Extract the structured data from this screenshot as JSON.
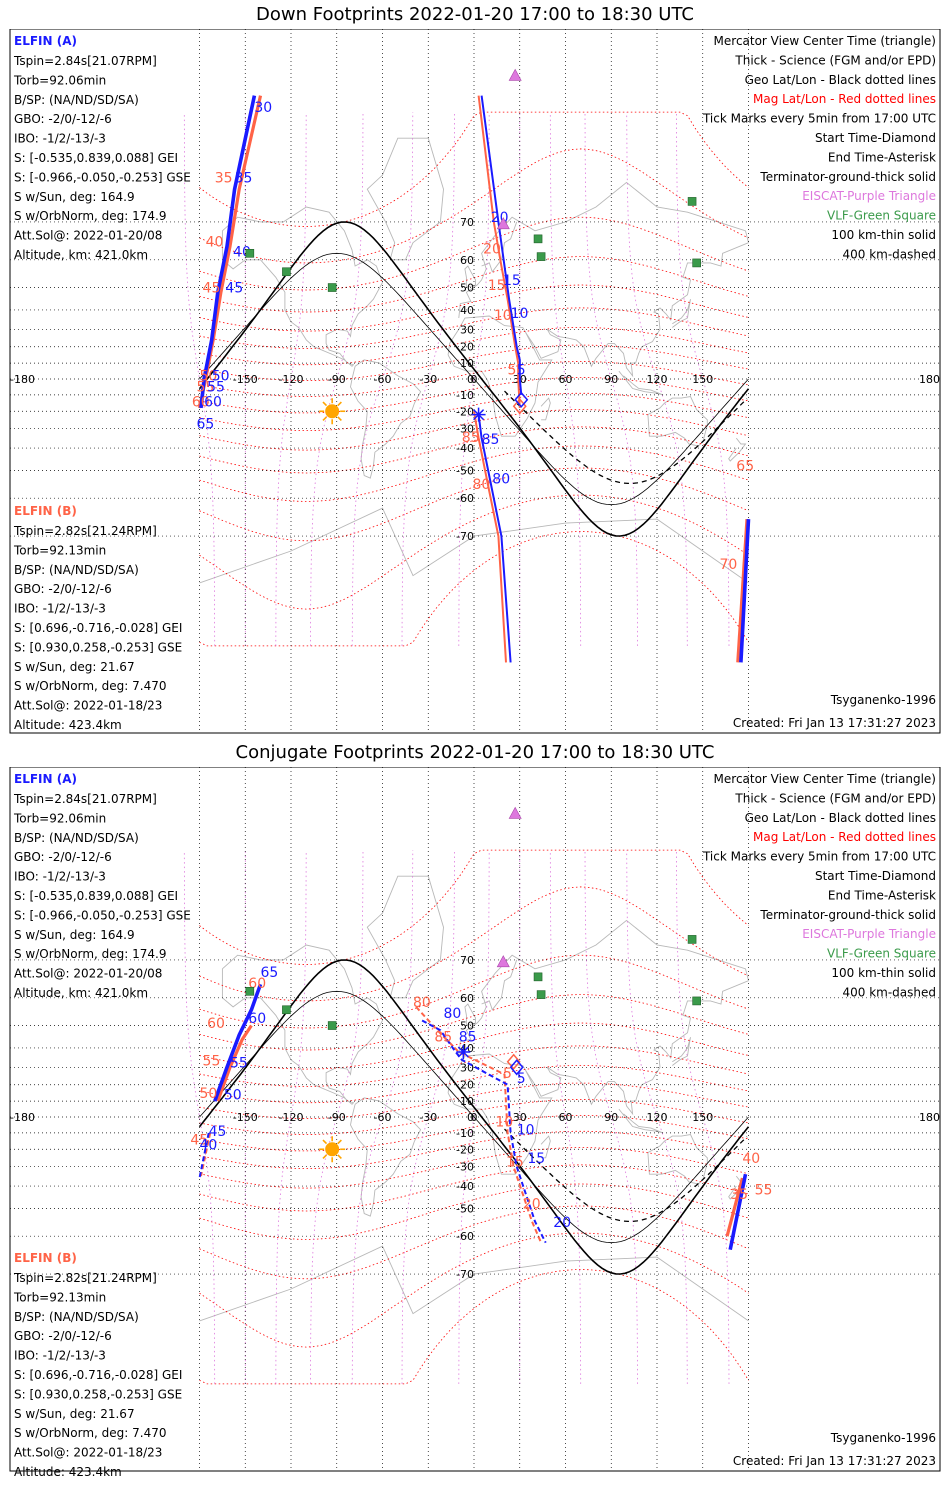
{
  "colors": {
    "sat_a": "#1a1aff",
    "sat_b": "#ff6347",
    "geo_grid": "#000000",
    "mag_grid": "#ff0000",
    "eiscat": "#dd77dd",
    "vlf": "#3a9a4a",
    "coast": "#b8b8b8",
    "sun": "#ffa500"
  },
  "legend": [
    {
      "text": "Mercator View Center Time (triangle)",
      "color": "#000000"
    },
    {
      "text": "Thick - Science (FGM and/or EPD)",
      "color": "#000000"
    },
    {
      "text": "Geo Lat/Lon - Black dotted lines",
      "color": "#000000"
    },
    {
      "text": "Mag Lat/Lon - Red dotted lines",
      "color": "#ff0000"
    },
    {
      "text": "Tick Marks every 5min from 17:00 UTC",
      "color": "#000000"
    },
    {
      "text": "Start Time-Diamond",
      "color": "#000000"
    },
    {
      "text": "End Time-Asterisk",
      "color": "#000000"
    },
    {
      "text": "Terminator-ground-thick solid",
      "color": "#000000"
    },
    {
      "text": "EISCAT-Purple Triangle",
      "color": "#dd77dd"
    },
    {
      "text": "VLF-Green Square",
      "color": "#3a9a4a"
    },
    {
      "text": "100 km-thin solid",
      "color": "#000000"
    },
    {
      "text": "400 km-dashed",
      "color": "#000000"
    }
  ],
  "info_a": [
    "Tspin=2.84s[21.07RPM]",
    "Torb=92.06min",
    "B/SP: (NA/ND/SD/SA)",
    "GBO: -2/0/-12/-6",
    "IBO: -1/2/-13/-3",
    "S: [-0.535,0.839,0.088] GEI",
    "S: [-0.966,-0.050,-0.253] GSE",
    "S w/Sun, deg: 164.9",
    "S w/OrbNorm, deg: 174.9",
    "Att.Sol@: 2022-01-20/08",
    "Altitude, km: 421.0km"
  ],
  "info_b": [
    "Tspin=2.82s[21.24RPM]",
    "Torb=92.13min",
    "B/SP: (NA/ND/SD/SA)",
    "GBO: -2/0/-12/-6",
    "IBO: -1/2/-13/-3",
    "S: [0.696,-0.716,-0.028] GEI",
    "S: [0.930,0.258,-0.253] GSE",
    "S w/Sun, deg: 21.67",
    "S w/OrbNorm, deg: 7.470",
    "Att.Sol@: 2022-01-18/23",
    "Altitude: 423.4km"
  ],
  "lon_ticks": [
    -180,
    -150,
    -120,
    -90,
    -60,
    -30,
    0,
    30,
    60,
    90,
    120,
    150,
    180
  ],
  "lon_tick_labels": [
    "-180",
    "-150",
    "-120",
    "-90",
    "-60",
    "-30",
    "0",
    "30",
    "60",
    "90",
    "120",
    "150",
    "180"
  ],
  "lat_ticks": [
    70,
    60,
    50,
    40,
    30,
    20,
    10,
    0,
    -10,
    -20,
    -30,
    -40,
    -50,
    -60,
    -70
  ],
  "lat_tick_labels": [
    "70",
    "60",
    "50",
    "40",
    "30",
    "20",
    "10",
    "0",
    "-10",
    "-20",
    "-30",
    "-40",
    "-50",
    "-60",
    "-70"
  ],
  "eiscat": [
    {
      "lon": 19.2,
      "lat": 69.6
    },
    {
      "lon": 27.0,
      "lat": 86.0
    }
  ],
  "vlf": [
    {
      "lon": 42,
      "lat": 66
    },
    {
      "lon": 44,
      "lat": 61
    },
    {
      "lon": 146,
      "lat": 59
    },
    {
      "lon": 143,
      "lat": 74
    },
    {
      "lon": -123,
      "lat": 56
    },
    {
      "lon": -147,
      "lat": 62
    },
    {
      "lon": -93,
      "lat": 50
    }
  ],
  "sun": {
    "lon": -93,
    "lat": -20
  },
  "panels": [
    {
      "title": "Down Footprints 2022-01-20 17:00 to 18:30 UTC",
      "sat_a_label": "ELFIN (A)",
      "sat_b_label": "ELFIN (B)",
      "model_label": "Tsyganenko-1996",
      "created_label": "Created: Fri Jan 13 17:31:27 2023",
      "terminator": {
        "phase": 95,
        "amp": 70
      },
      "term100": {
        "phase": 98,
        "amp": 70
      },
      "term400": {
        "phase": 102,
        "amp": 63
      },
      "track_a": [
        {
          "lon": -144,
          "lat": 85
        },
        {
          "lon": -157,
          "lat": 76
        },
        {
          "lon": -162,
          "lat": 64
        },
        {
          "lon": -168,
          "lat": 48
        },
        {
          "lon": -172,
          "lat": 24
        },
        {
          "lon": -177,
          "lat": 0
        },
        {
          "lon": -179,
          "lat": -18
        }
      ],
      "track_a2": [
        {
          "lon": 5,
          "lat": 85
        },
        {
          "lon": 16,
          "lat": 70
        },
        {
          "lon": 20,
          "lat": 58
        },
        {
          "lon": 23,
          "lat": 45
        },
        {
          "lon": 28,
          "lat": 20
        },
        {
          "lon": 30,
          "lat": 12
        },
        {
          "lon": 30,
          "lat": 0
        },
        {
          "lon": 31,
          "lat": -10
        }
      ],
      "track_a3": [
        {
          "lon": 3,
          "lat": -22
        },
        {
          "lon": 5,
          "lat": -35
        },
        {
          "lon": 11,
          "lat": -55
        },
        {
          "lon": 18,
          "lat": -70
        },
        {
          "lon": 24,
          "lat": -85
        }
      ],
      "track_a4": [
        {
          "lon": 175,
          "lat": -85
        },
        {
          "lon": 180,
          "lat": -66
        }
      ],
      "track_b": [
        {
          "lon": -140,
          "lat": 85
        },
        {
          "lon": -154,
          "lat": 76
        },
        {
          "lon": -160,
          "lat": 64
        },
        {
          "lon": -166,
          "lat": 48
        },
        {
          "lon": -171,
          "lat": 24
        },
        {
          "lon": -176,
          "lat": 0
        },
        {
          "lon": -180,
          "lat": -18
        }
      ],
      "track_b2": [
        {
          "lon": 3,
          "lat": 85
        },
        {
          "lon": 13,
          "lat": 70
        },
        {
          "lon": 18,
          "lat": 58
        },
        {
          "lon": 22,
          "lat": 45
        },
        {
          "lon": 27,
          "lat": 20
        },
        {
          "lon": 29,
          "lat": 10
        },
        {
          "lon": 29,
          "lat": 0
        },
        {
          "lon": 30,
          "lat": -18
        }
      ],
      "track_b3": [
        {
          "lon": 0,
          "lat": -20
        },
        {
          "lon": 3,
          "lat": -35
        },
        {
          "lon": 9,
          "lat": -55
        },
        {
          "lon": 16,
          "lat": -70
        },
        {
          "lon": 21,
          "lat": -85
        }
      ],
      "track_b4": [
        {
          "lon": 173,
          "lat": -85
        },
        {
          "lon": 179,
          "lat": -66
        }
      ],
      "diamond_a": {
        "lon": 31,
        "lat": -13
      },
      "diamond_b": {
        "lon": 30,
        "lat": -17
      },
      "asterisk_a": {
        "lon": 3,
        "lat": -22
      },
      "labels_a": [
        {
          "text": "30",
          "lon": -144,
          "lat": 84
        },
        {
          "text": "35",
          "lon": -157,
          "lat": 77
        },
        {
          "text": "40",
          "lon": -158,
          "lat": 61
        },
        {
          "text": "45",
          "lon": -163,
          "lat": 48
        },
        {
          "text": "50",
          "lon": -172,
          "lat": -1
        },
        {
          "text": "55",
          "lon": -175,
          "lat": -8
        },
        {
          "text": "60",
          "lon": -177,
          "lat": -17
        },
        {
          "text": "65",
          "lon": -182,
          "lat": -30
        },
        {
          "text": "10",
          "lon": 24,
          "lat": 36
        },
        {
          "text": "15",
          "lon": 19,
          "lat": 51
        },
        {
          "text": "20",
          "lon": 11,
          "lat": 70
        },
        {
          "text": "5",
          "lon": 28,
          "lat": 3
        },
        {
          "text": "85",
          "lon": 5,
          "lat": -38
        },
        {
          "text": "80",
          "lon": 12,
          "lat": -55
        }
      ],
      "labels_b": [
        {
          "text": "35",
          "lon": -170,
          "lat": 77
        },
        {
          "text": "40",
          "lon": -176,
          "lat": 64
        },
        {
          "text": "45",
          "lon": -178,
          "lat": 48
        },
        {
          "text": "50",
          "lon": -180,
          "lat": -1
        },
        {
          "text": "55",
          "lon": -182,
          "lat": -8
        },
        {
          "text": "60",
          "lon": -185,
          "lat": -17
        },
        {
          "text": "20",
          "lon": 6,
          "lat": 62
        },
        {
          "text": "15",
          "lon": 9,
          "lat": 49
        },
        {
          "text": "10",
          "lon": 13,
          "lat": 35
        },
        {
          "text": "5",
          "lon": 22,
          "lat": 3
        },
        {
          "text": "85",
          "lon": -8,
          "lat": -37
        },
        {
          "text": "80",
          "lon": -1,
          "lat": -57
        },
        {
          "text": "65",
          "lon": 172,
          "lat": -50
        },
        {
          "text": "70",
          "lon": 161,
          "lat": -76
        }
      ]
    },
    {
      "title": "Conjugate Footprints 2022-01-20 17:00 to 18:30 UTC",
      "sat_a_label": "ELFIN (A)",
      "sat_b_label": "ELFIN (B)",
      "model_label": "Tsyganenko-1996",
      "created_label": "Created: Fri Jan 13 17:31:27 2023",
      "terminator": {
        "phase": 95,
        "amp": 70
      },
      "term100": {
        "phase": 98,
        "amp": 70
      },
      "term400": {
        "phase": 102,
        "amp": 63
      },
      "track_a": [
        {
          "lon": -140,
          "lat": 64
        },
        {
          "lon": -146,
          "lat": 56
        },
        {
          "lon": -154,
          "lat": 46
        },
        {
          "lon": -162,
          "lat": 30
        },
        {
          "lon": -170,
          "lat": 10
        }
      ],
      "track_a2": [
        {
          "lon": -174,
          "lat": -10
        },
        {
          "lon": -180,
          "lat": -36
        }
      ],
      "track_a3": [
        {
          "lon": -34,
          "lat": 52
        },
        {
          "lon": -22,
          "lat": 48
        },
        {
          "lon": -12,
          "lat": 38
        },
        {
          "lon": -8,
          "lat": 34
        },
        {
          "lon": 22,
          "lat": 20
        },
        {
          "lon": 24,
          "lat": -10
        },
        {
          "lon": 28,
          "lat": -30
        },
        {
          "lon": 40,
          "lat": -55
        },
        {
          "lon": 47,
          "lat": -62
        }
      ],
      "track_a4": [
        {
          "lon": 178,
          "lat": -34
        },
        {
          "lon": 168,
          "lat": -64
        }
      ],
      "track_b": [
        {
          "lon": -146,
          "lat": 50
        },
        {
          "lon": -152,
          "lat": 44
        },
        {
          "lon": -160,
          "lat": 30
        },
        {
          "lon": -168,
          "lat": 10
        }
      ],
      "track_b2": [
        {
          "lon": -173,
          "lat": -10
        },
        {
          "lon": -179,
          "lat": -35
        }
      ],
      "track_b3": [
        {
          "lon": -38,
          "lat": 57
        },
        {
          "lon": -24,
          "lat": 48
        },
        {
          "lon": -10,
          "lat": 38
        },
        {
          "lon": 20,
          "lat": 26
        },
        {
          "lon": 22,
          "lat": -10
        },
        {
          "lon": 26,
          "lat": -30
        },
        {
          "lon": 38,
          "lat": -55
        },
        {
          "lon": 44,
          "lat": -62
        }
      ],
      "track_b4": [
        {
          "lon": 176,
          "lat": -36
        },
        {
          "lon": 166,
          "lat": -60
        }
      ],
      "diamond_a": {
        "lon": 28,
        "lat": 30
      },
      "diamond_b": {
        "lon": 26,
        "lat": 33
      },
      "asterisk_a": {
        "lon": -7,
        "lat": 38
      },
      "labels_a": [
        {
          "text": "65",
          "lon": -140,
          "lat": 66
        },
        {
          "text": "60",
          "lon": -148,
          "lat": 51
        },
        {
          "text": "55",
          "lon": -160,
          "lat": 30
        },
        {
          "text": "50",
          "lon": -164,
          "lat": 11
        },
        {
          "text": "45",
          "lon": -174,
          "lat": -12
        },
        {
          "text": "40",
          "lon": -180,
          "lat": -20
        },
        {
          "text": "80",
          "lon": -20,
          "lat": 53
        },
        {
          "text": "85",
          "lon": -10,
          "lat": 43
        },
        {
          "text": "5",
          "lon": 28,
          "lat": 21
        },
        {
          "text": "10",
          "lon": 28,
          "lat": -11
        },
        {
          "text": "15",
          "lon": 35,
          "lat": -28
        },
        {
          "text": "20",
          "lon": 52,
          "lat": -57
        }
      ],
      "labels_b": [
        {
          "text": "60",
          "lon": -175,
          "lat": 49
        },
        {
          "text": "60",
          "lon": -148,
          "lat": 63
        },
        {
          "text": "55",
          "lon": -178,
          "lat": 31
        },
        {
          "text": "50",
          "lon": -180,
          "lat": 12
        },
        {
          "text": "45",
          "lon": -186,
          "lat": -17
        },
        {
          "text": "80",
          "lon": -40,
          "lat": 57
        },
        {
          "text": "85",
          "lon": -26,
          "lat": 43
        },
        {
          "text": "5",
          "lon": 19,
          "lat": 24
        },
        {
          "text": "10",
          "lon": 14,
          "lat": -6
        },
        {
          "text": "15",
          "lon": 21,
          "lat": -30
        },
        {
          "text": "20",
          "lon": 32,
          "lat": -50
        },
        {
          "text": "35",
          "lon": 168,
          "lat": -46
        },
        {
          "text": "40",
          "lon": 176,
          "lat": -28
        },
        {
          "text": "55",
          "lon": 184,
          "lat": -44
        }
      ]
    }
  ]
}
